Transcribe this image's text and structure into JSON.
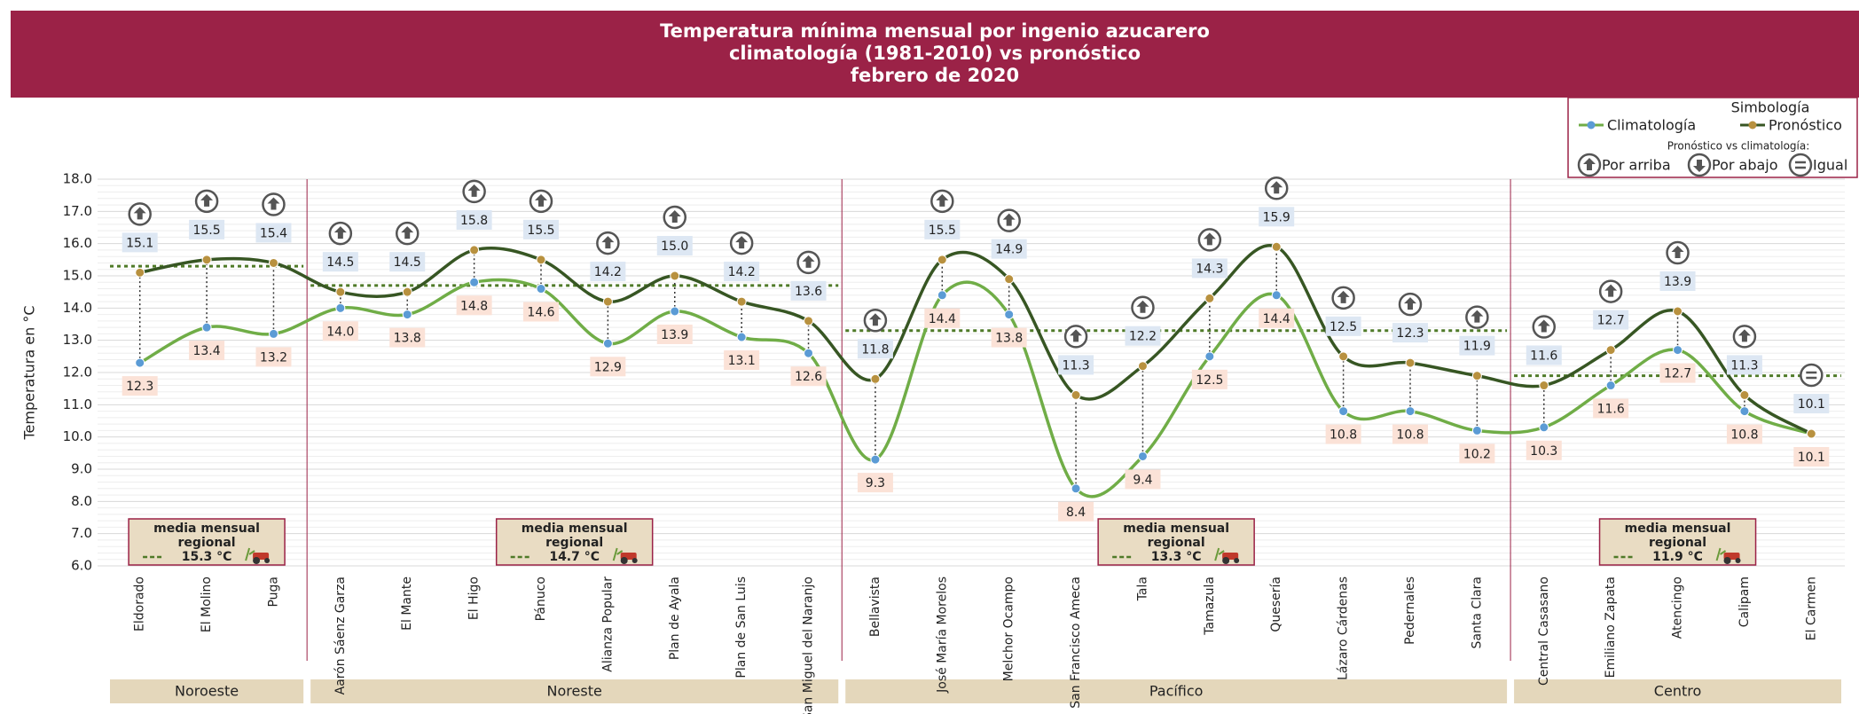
{
  "chart_data": {
    "type": "line",
    "title": [
      "Temperatura mínima mensual por ingenio azucarero",
      "climatología (1981-2010) vs pronóstico",
      "febrero de 2020"
    ],
    "y_label": "Temperatura en °C",
    "ylim": [
      6,
      18
    ],
    "yticks": [
      {
        "value": 6,
        "label": "6.0"
      },
      {
        "value": 7,
        "label": "7.0"
      },
      {
        "value": 8,
        "label": "8.0"
      },
      {
        "value": 9,
        "label": "9.0"
      },
      {
        "value": 10,
        "label": "10.0"
      },
      {
        "value": 11,
        "label": "11.0"
      },
      {
        "value": 12,
        "label": "12.0"
      },
      {
        "value": 13,
        "label": "13.0"
      },
      {
        "value": 14,
        "label": "14.0"
      },
      {
        "value": 15,
        "label": "15.0"
      },
      {
        "value": 16,
        "label": "16.0"
      },
      {
        "value": 17,
        "label": "17.0"
      },
      {
        "value": 18,
        "label": "18.0"
      }
    ],
    "grid": true,
    "regions": [
      {
        "name": "Noroeste",
        "mean": 15.3,
        "mean_label": "15.3 °C",
        "categories": [
          "Eldorado",
          "El Molino",
          "Puga"
        ]
      },
      {
        "name": "Noreste",
        "mean": 14.7,
        "mean_label": "14.7 °C",
        "categories": [
          "Aarón Sáenz Garza",
          "El Mante",
          "El Higo",
          "Pánuco",
          "Alianza Popular",
          "Plan de Ayala",
          "Plan de San Luis",
          "San Miguel del Naranjo"
        ]
      },
      {
        "name": "Pacífico",
        "mean": 13.3,
        "mean_label": "13.3 °C",
        "categories": [
          "Bellavista",
          "José María Morelos",
          "Melchor Ocampo",
          "San Francisco Ameca",
          "Tala",
          "Tamazula",
          "Quesería",
          "Lázaro Cárdenas",
          "Pedernales",
          "Santa Clara"
        ]
      },
      {
        "name": "Centro",
        "mean": 11.9,
        "mean_label": "11.9 °C",
        "categories": [
          "Central Casasano",
          "Emiliano Zapata",
          "Atencingo",
          "Calipam",
          "El Carmen"
        ]
      }
    ],
    "mean_caption": [
      "media mensual",
      "regional"
    ],
    "series": [
      {
        "name": "Climatología",
        "color": "#70ad47",
        "marker_color": "#5b9bd5",
        "values": [
          12.3,
          13.4,
          13.2,
          14.0,
          13.8,
          14.8,
          14.6,
          12.9,
          13.9,
          13.1,
          12.6,
          9.3,
          14.4,
          13.8,
          8.4,
          9.4,
          12.5,
          14.4,
          10.8,
          10.8,
          10.2,
          10.3,
          11.6,
          12.7,
          10.8,
          10.1
        ],
        "value_labels": [
          "12.3",
          "13.4",
          "13.2",
          "14.0",
          "13.8",
          "14.8",
          "14.6",
          "12.9",
          "13.9",
          "13.1",
          "12.6",
          "9.3",
          "14.4",
          "13.8",
          "8.4",
          "9.4",
          "12.5",
          "14.4",
          "10.8",
          "10.8",
          "10.2",
          "10.3",
          "11.6",
          "12.7",
          "10.8",
          "10.1"
        ]
      },
      {
        "name": "Pronóstico",
        "color": "#375623",
        "marker_color": "#b8913f",
        "values": [
          15.1,
          15.5,
          15.4,
          14.5,
          14.5,
          15.8,
          15.5,
          14.2,
          15.0,
          14.2,
          13.6,
          11.8,
          15.5,
          14.9,
          11.3,
          12.2,
          14.3,
          15.9,
          12.5,
          12.3,
          11.9,
          11.6,
          12.7,
          13.9,
          11.3,
          10.1
        ],
        "value_labels": [
          "15.1",
          "15.5",
          "15.4",
          "14.5",
          "14.5",
          "15.8",
          "15.5",
          "14.2",
          "15.0",
          "14.2",
          "13.6",
          "11.8",
          "15.5",
          "14.9",
          "11.3",
          "12.2",
          "14.3",
          "15.9",
          "12.5",
          "12.3",
          "11.9",
          "11.6",
          "12.7",
          "13.9",
          "11.3",
          "10.1"
        ]
      }
    ],
    "legend": {
      "title": "Simbología",
      "subtitle": "Pronóstico vs climatología:",
      "above": "Por arriba",
      "below": "Por abajo",
      "equal": "Igual"
    }
  }
}
